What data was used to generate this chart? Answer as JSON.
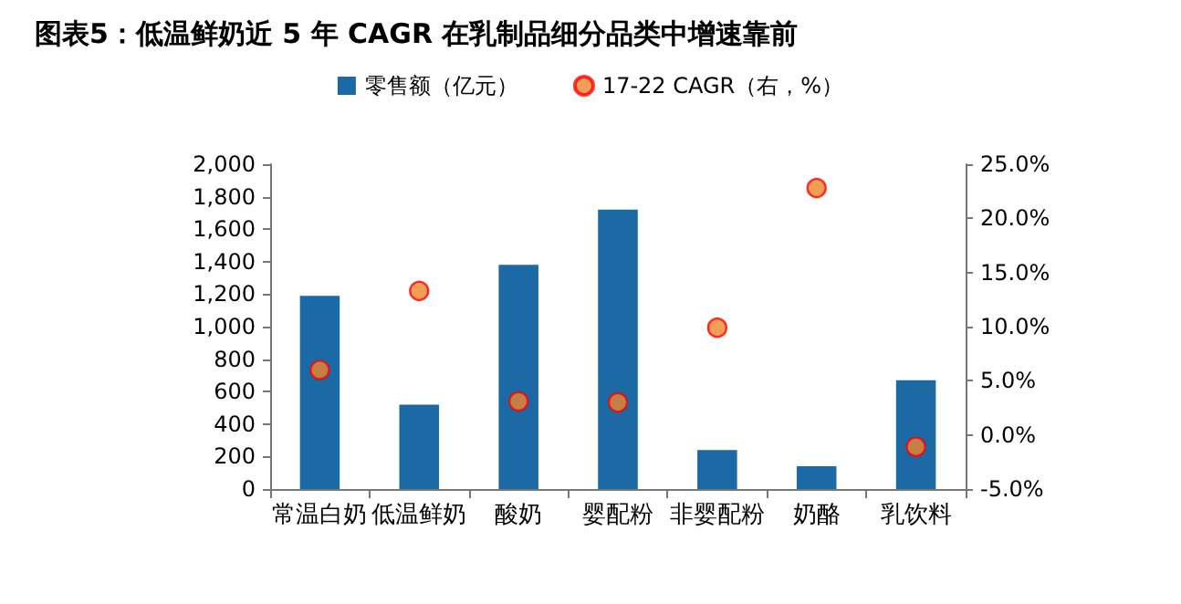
{
  "chart_data": {
    "type": "bar",
    "title": "图表5：低温鲜奶近 5 年 CAGR 在乳制品细分品类中增速靠前",
    "categories": [
      "常温白奶",
      "低温鲜奶",
      "酸奶",
      "婴配粉",
      "非婴配粉",
      "奶酪",
      "乳饮料"
    ],
    "series": [
      {
        "name": "零售额（亿元）",
        "color": "#1b6aa5",
        "values": [
          1190,
          520,
          1380,
          1720,
          240,
          140,
          670
        ]
      },
      {
        "name": "17-22 CAGR（右，%）",
        "type": "scatter",
        "axis": "y2",
        "color": "#f0852d",
        "values": [
          6.0,
          13.3,
          3.1,
          3.0,
          9.9,
          22.8,
          -1.1
        ]
      }
    ],
    "ylim": [
      0,
      2000
    ],
    "yticks": [
      0,
      {
        "value": 200,
        "label": "200"
      },
      {
        "value": 400,
        "label": "400"
      },
      {
        "value": 600,
        "label": "600"
      },
      {
        "value": 800,
        "label": "800"
      },
      {
        "value": 1000,
        "label": "1,000"
      },
      {
        "value": 1200,
        "label": "1,200"
      },
      {
        "value": 1400,
        "label": "1,400"
      },
      {
        "value": 1600,
        "label": "1,600"
      },
      {
        "value": 1800,
        "label": "1,800"
      },
      {
        "value": 2000,
        "label": "2,000"
      }
    ],
    "y2lim": [
      -5,
      25
    ],
    "y2ticks": [
      {
        "value": -5,
        "label": "-5.0%"
      },
      {
        "value": 0,
        "label": "0.0%"
      },
      {
        "value": 5,
        "label": "5.0%"
      },
      {
        "value": 10,
        "label": "10.0%"
      },
      {
        "value": 15,
        "label": "15.0%"
      },
      {
        "value": 20,
        "label": "20.0%"
      },
      {
        "value": 25,
        "label": "25.0%"
      }
    ],
    "marker": "circle",
    "grid": false,
    "legend": "top"
  }
}
